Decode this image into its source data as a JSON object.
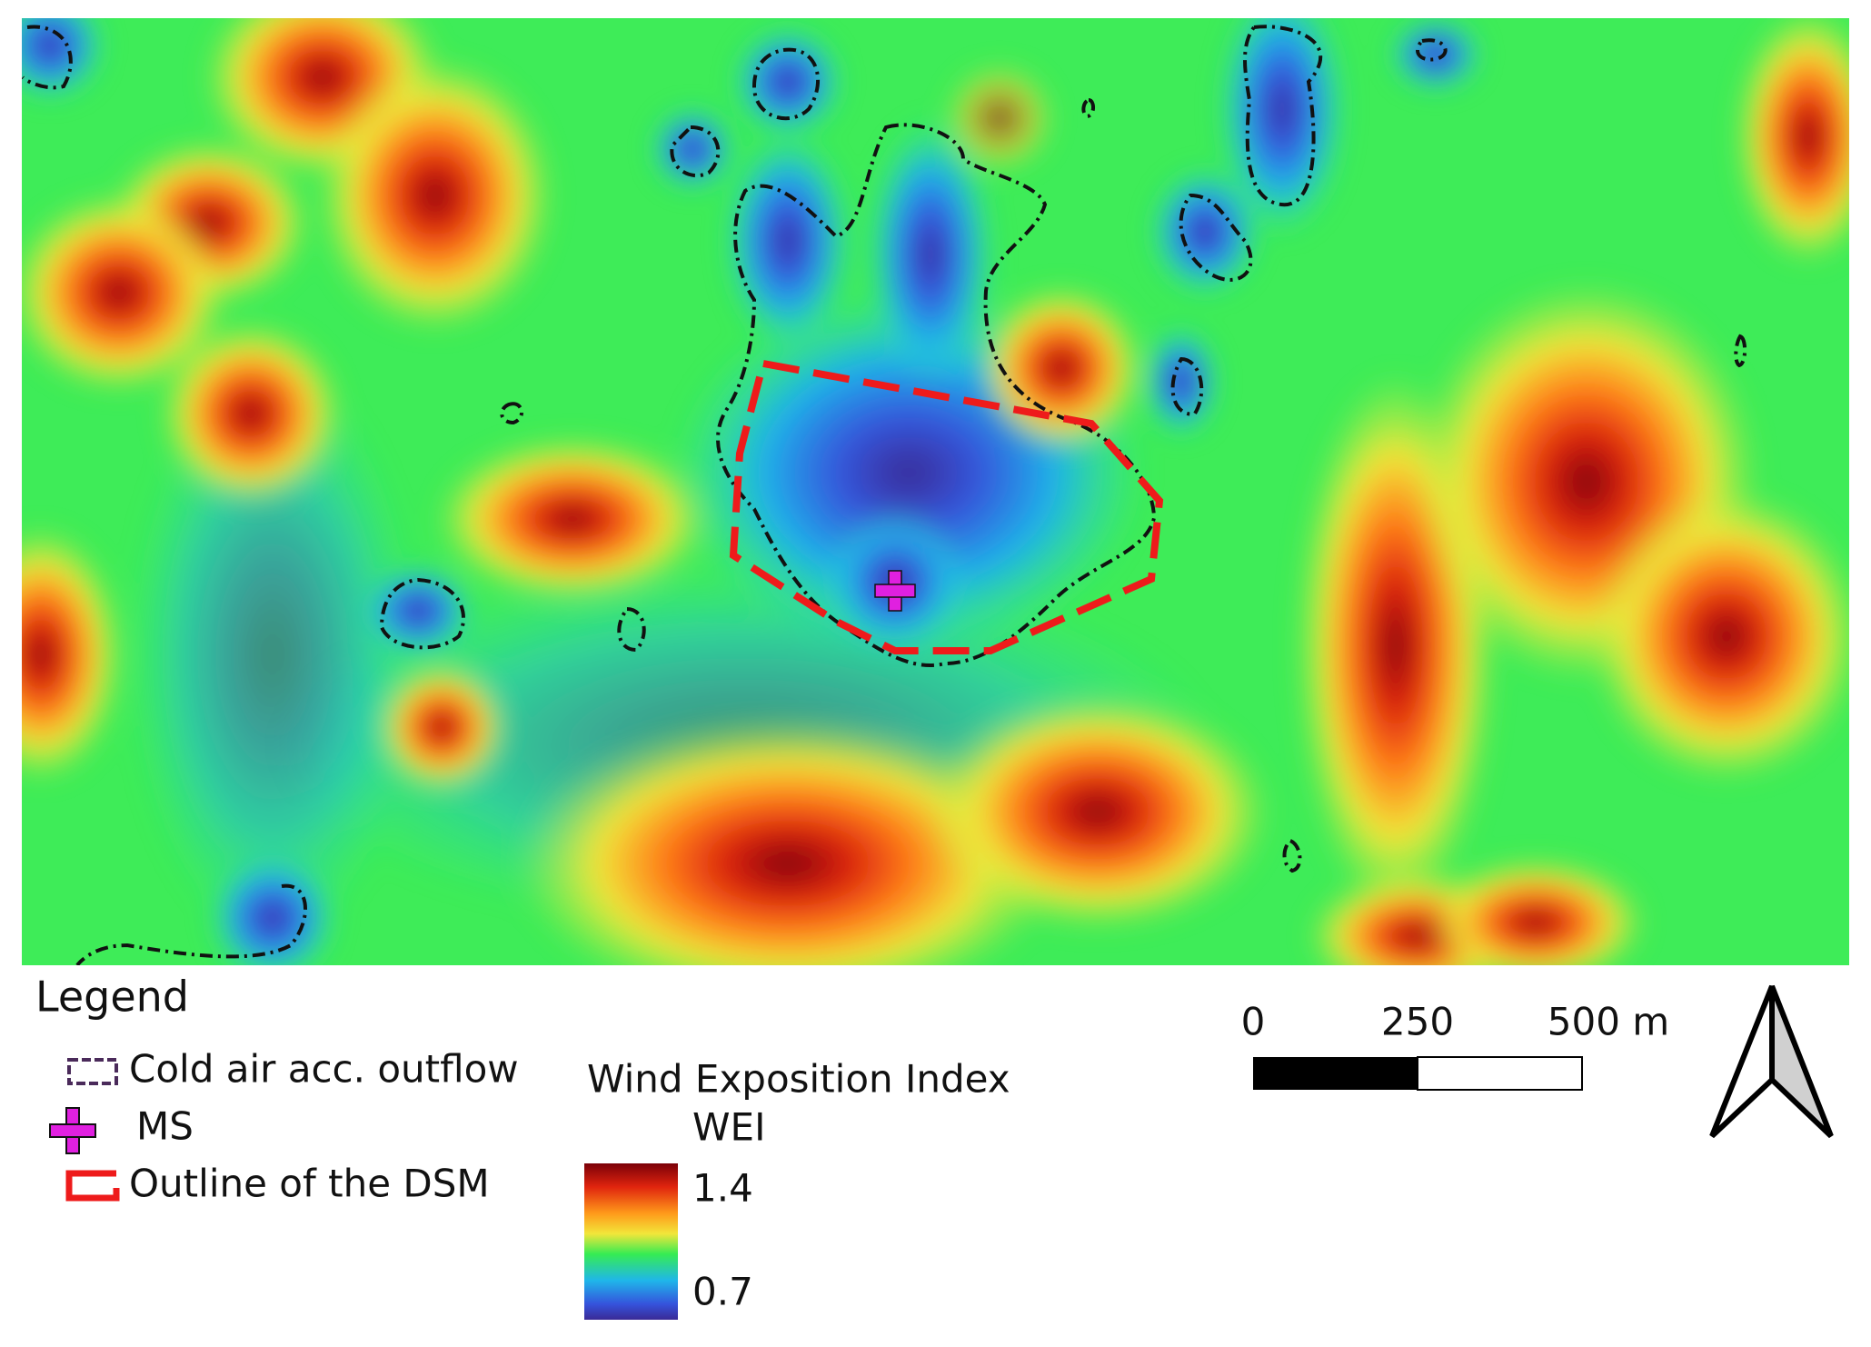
{
  "legend": {
    "title": "Legend",
    "items": [
      "Cold air acc. outflow",
      "MS",
      "Outline of the DSM"
    ]
  },
  "colorbar": {
    "title": "Wind Exposition Index",
    "subtitle": "WEI",
    "max_label": "1.4",
    "min_label": "0.7"
  },
  "scale_bar": {
    "labels": [
      "0",
      "250",
      "500 m"
    ]
  }
}
